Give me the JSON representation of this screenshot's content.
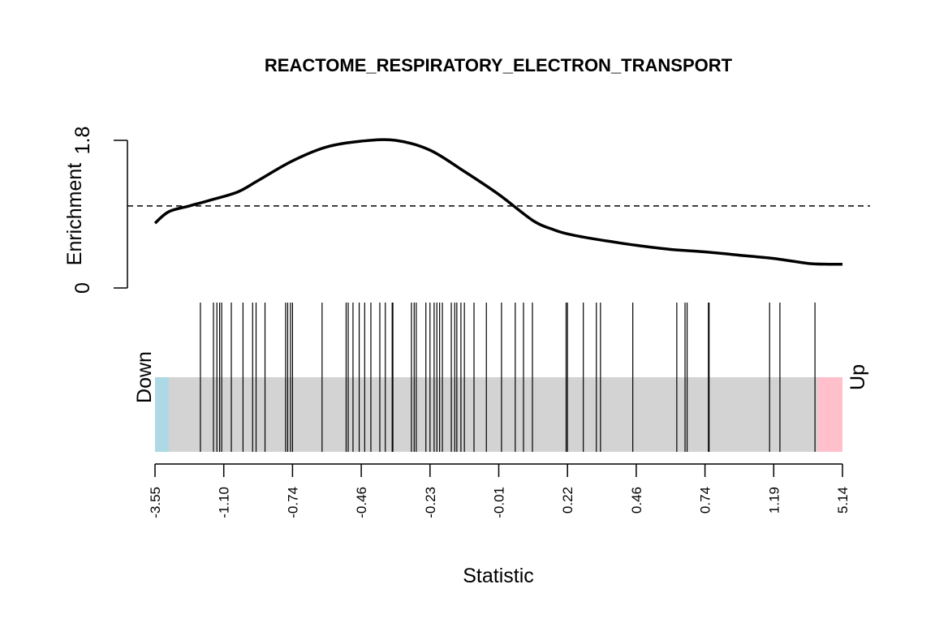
{
  "chart_data": {
    "type": "barcode",
    "title": "REACTOME_RESPIRATORY_ELECTRON_TRANSPORT",
    "xlabel": "Statistic",
    "enrichment_label": "Enrichment",
    "enrichment_ticks": [
      "0",
      "1.8"
    ],
    "enrichment_ylim": [
      0,
      1.8
    ],
    "enrichment_reference": 1.0,
    "enrichment_curve": {
      "x": [
        0.0,
        0.02,
        0.05,
        0.08,
        0.12,
        0.15,
        0.2,
        0.25,
        0.3,
        0.35,
        0.4,
        0.45,
        0.5,
        0.55,
        0.58,
        0.6,
        0.63,
        0.66,
        0.7,
        0.75,
        0.8,
        0.85,
        0.9,
        0.95,
        0.98,
        1.0
      ],
      "y": [
        0.79,
        0.93,
        1.0,
        1.07,
        1.17,
        1.31,
        1.55,
        1.72,
        1.79,
        1.8,
        1.68,
        1.42,
        1.14,
        0.82,
        0.71,
        0.66,
        0.61,
        0.57,
        0.52,
        0.47,
        0.44,
        0.4,
        0.36,
        0.3,
        0.29,
        0.29
      ]
    },
    "x_tick_labels": [
      "-3.55",
      "-1.10",
      "-0.74",
      "-0.46",
      "-0.23",
      "-0.01",
      "0.22",
      "0.46",
      "0.74",
      "1.19",
      "5.14"
    ],
    "down_label": "Down",
    "up_label": "Up",
    "down_region_fraction": 0.02,
    "up_region_fraction": 0.036,
    "barcode_positions": [
      0.066,
      0.085,
      0.09,
      0.094,
      0.097,
      0.111,
      0.128,
      0.142,
      0.147,
      0.16,
      0.19,
      0.193,
      0.197,
      0.2,
      0.243,
      0.278,
      0.281,
      0.288,
      0.297,
      0.305,
      0.314,
      0.327,
      0.335,
      0.345,
      0.346,
      0.373,
      0.377,
      0.38,
      0.394,
      0.4,
      0.406,
      0.41,
      0.414,
      0.418,
      0.431,
      0.436,
      0.439,
      0.445,
      0.45,
      0.464,
      0.482,
      0.504,
      0.524,
      0.536,
      0.549,
      0.598,
      0.6,
      0.623,
      0.642,
      0.648,
      0.695,
      0.759,
      0.771,
      0.774,
      0.805,
      0.806,
      0.894,
      0.909,
      0.96
    ],
    "colors": {
      "down": "#add8e6",
      "up": "#ffc0cb",
      "bar_background": "#d3d3d3",
      "line": "#000000"
    }
  }
}
